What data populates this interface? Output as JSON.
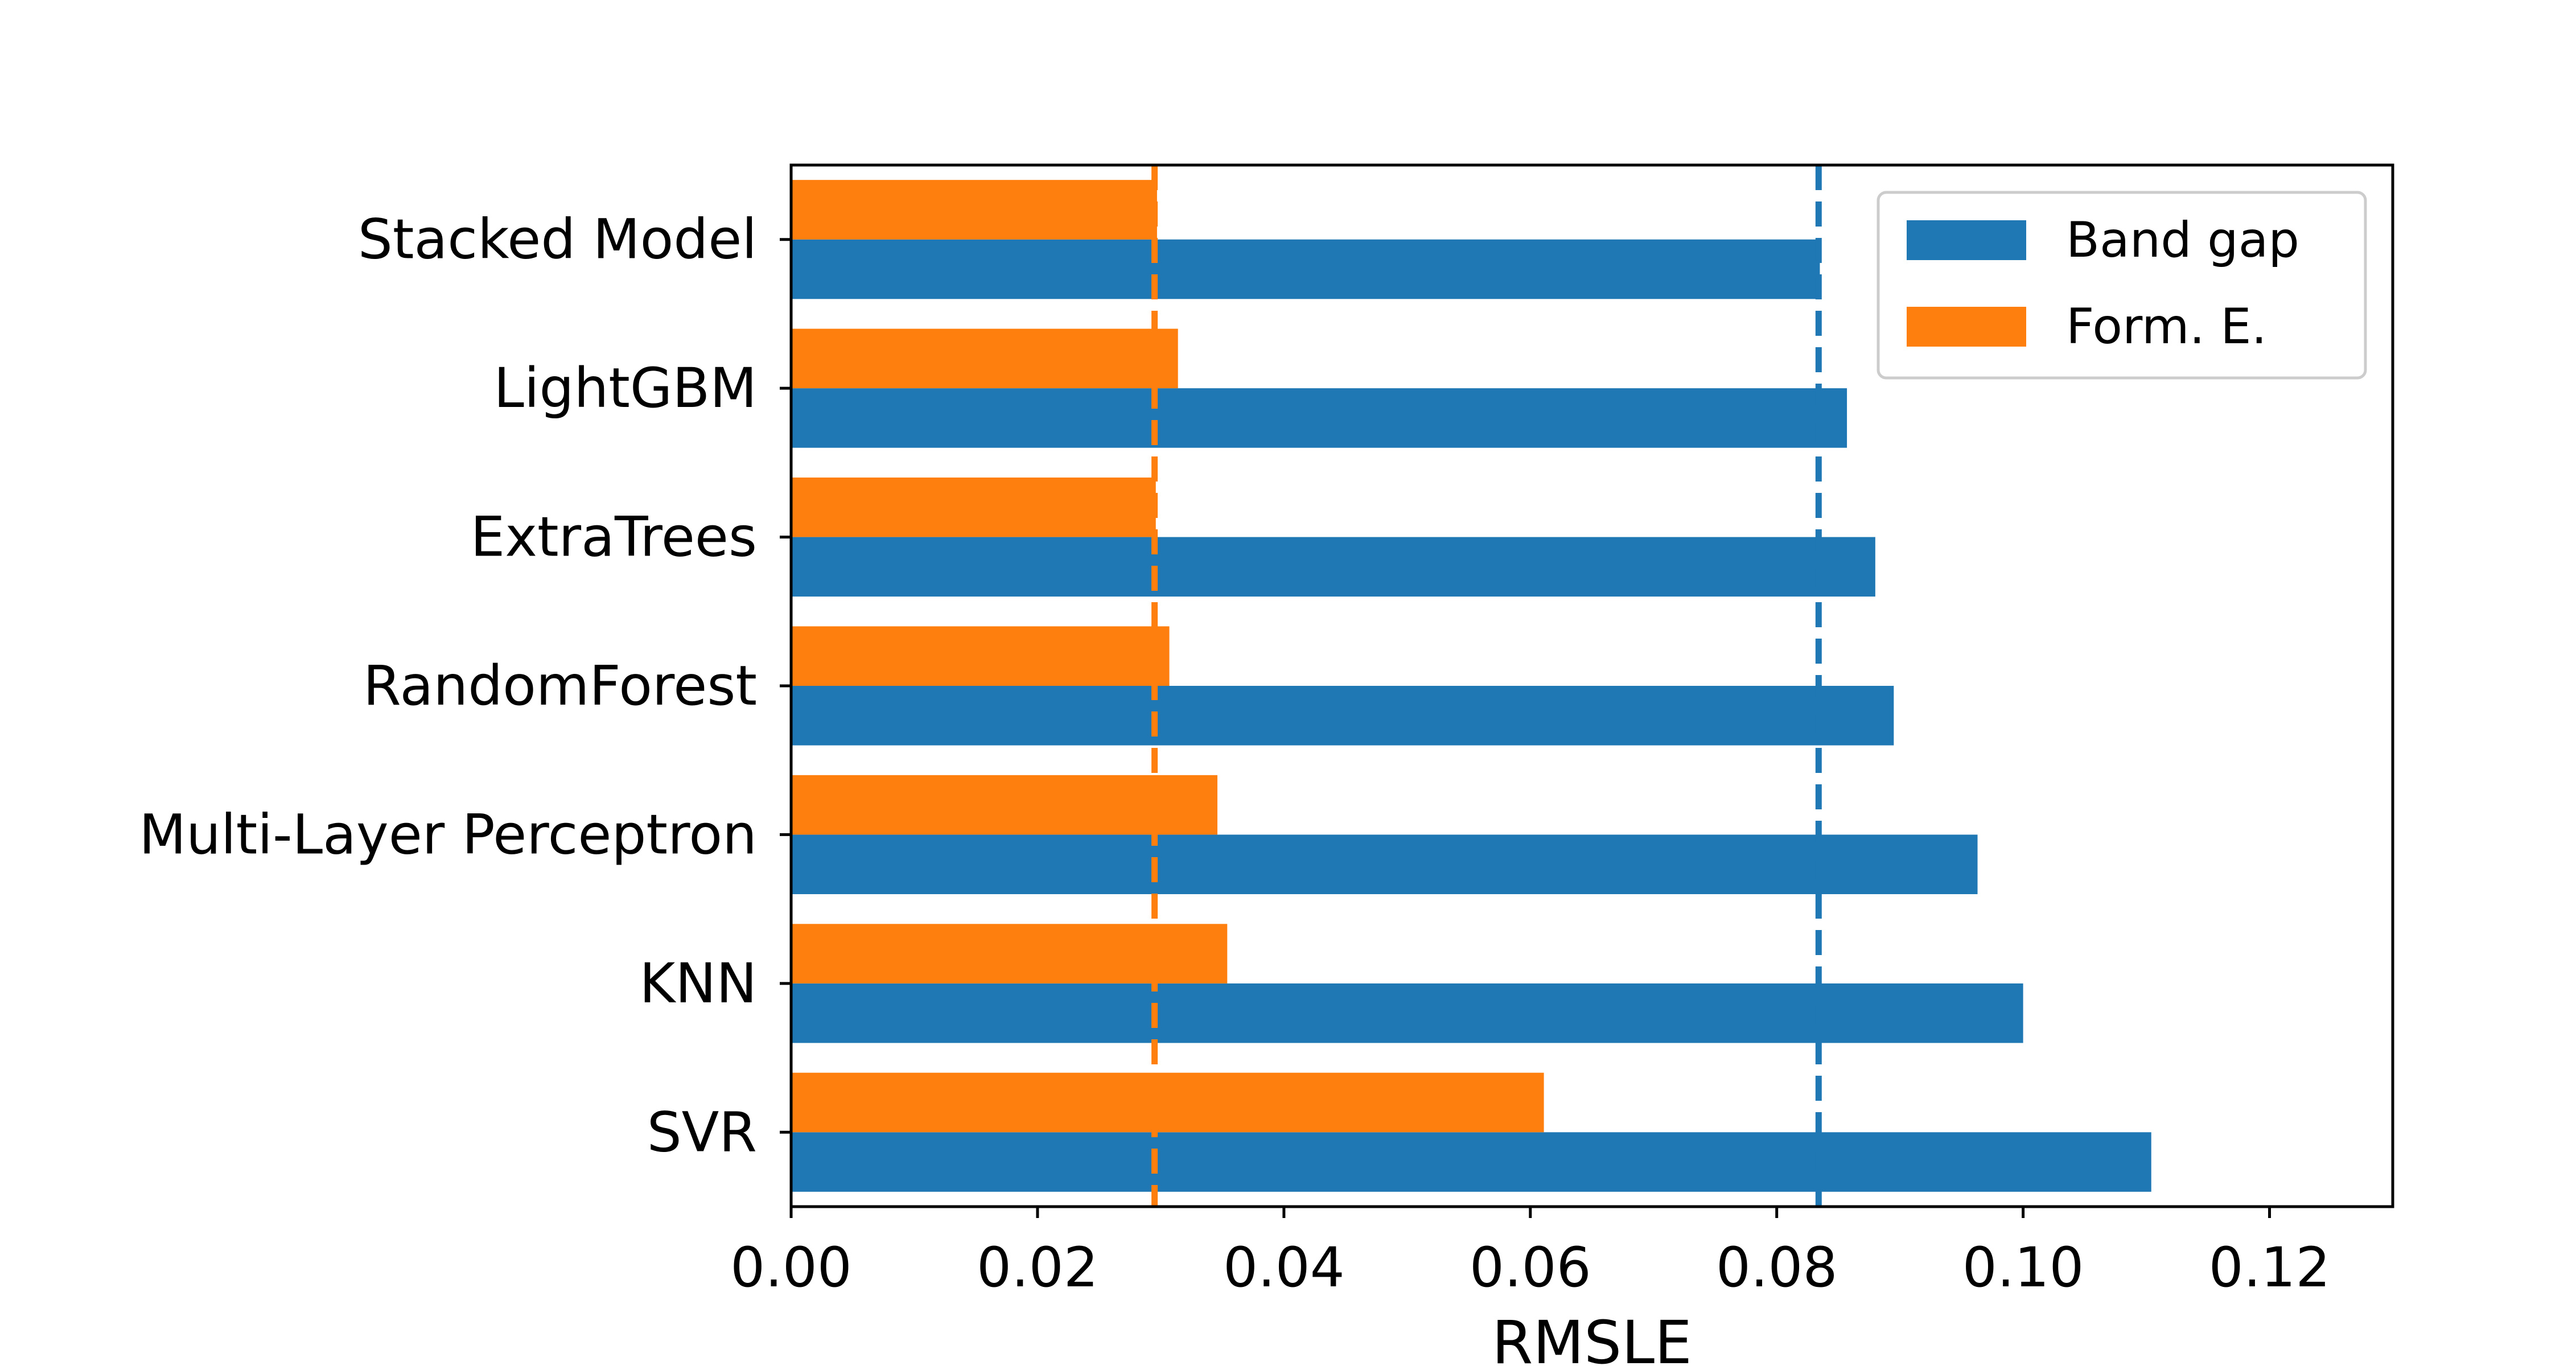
{
  "chart_data": {
    "type": "bar",
    "orientation": "horizontal",
    "categories": [
      "Stacked Model",
      "LightGBM",
      "ExtraTrees",
      "RandomForest",
      "Multi-Layer Perceptron",
      "KNN",
      "SVR"
    ],
    "series": [
      {
        "name": "Band gap",
        "color": "#1f77b4",
        "values": [
          0.0835,
          0.0857,
          0.088,
          0.0895,
          0.0963,
          0.1,
          0.1104
        ]
      },
      {
        "name": "Form. E.",
        "color": "#ff7f0e",
        "values": [
          0.0297,
          0.0314,
          0.0296,
          0.0307,
          0.0346,
          0.0354,
          0.0611
        ]
      }
    ],
    "reference_lines": [
      {
        "series": "Band gap",
        "value": 0.0834,
        "style": "dashed",
        "color": "#1f77b4"
      },
      {
        "series": "Form. E.",
        "value": 0.0295,
        "style": "dashed",
        "color": "#ff7f0e"
      }
    ],
    "xlabel": "RMSLE",
    "ylabel": "",
    "xlim": [
      0,
      0.13
    ],
    "xticks": [
      "0.00",
      "0.02",
      "0.04",
      "0.06",
      "0.08",
      "0.10",
      "0.12"
    ],
    "grid": false,
    "legend_position": "top-right"
  }
}
